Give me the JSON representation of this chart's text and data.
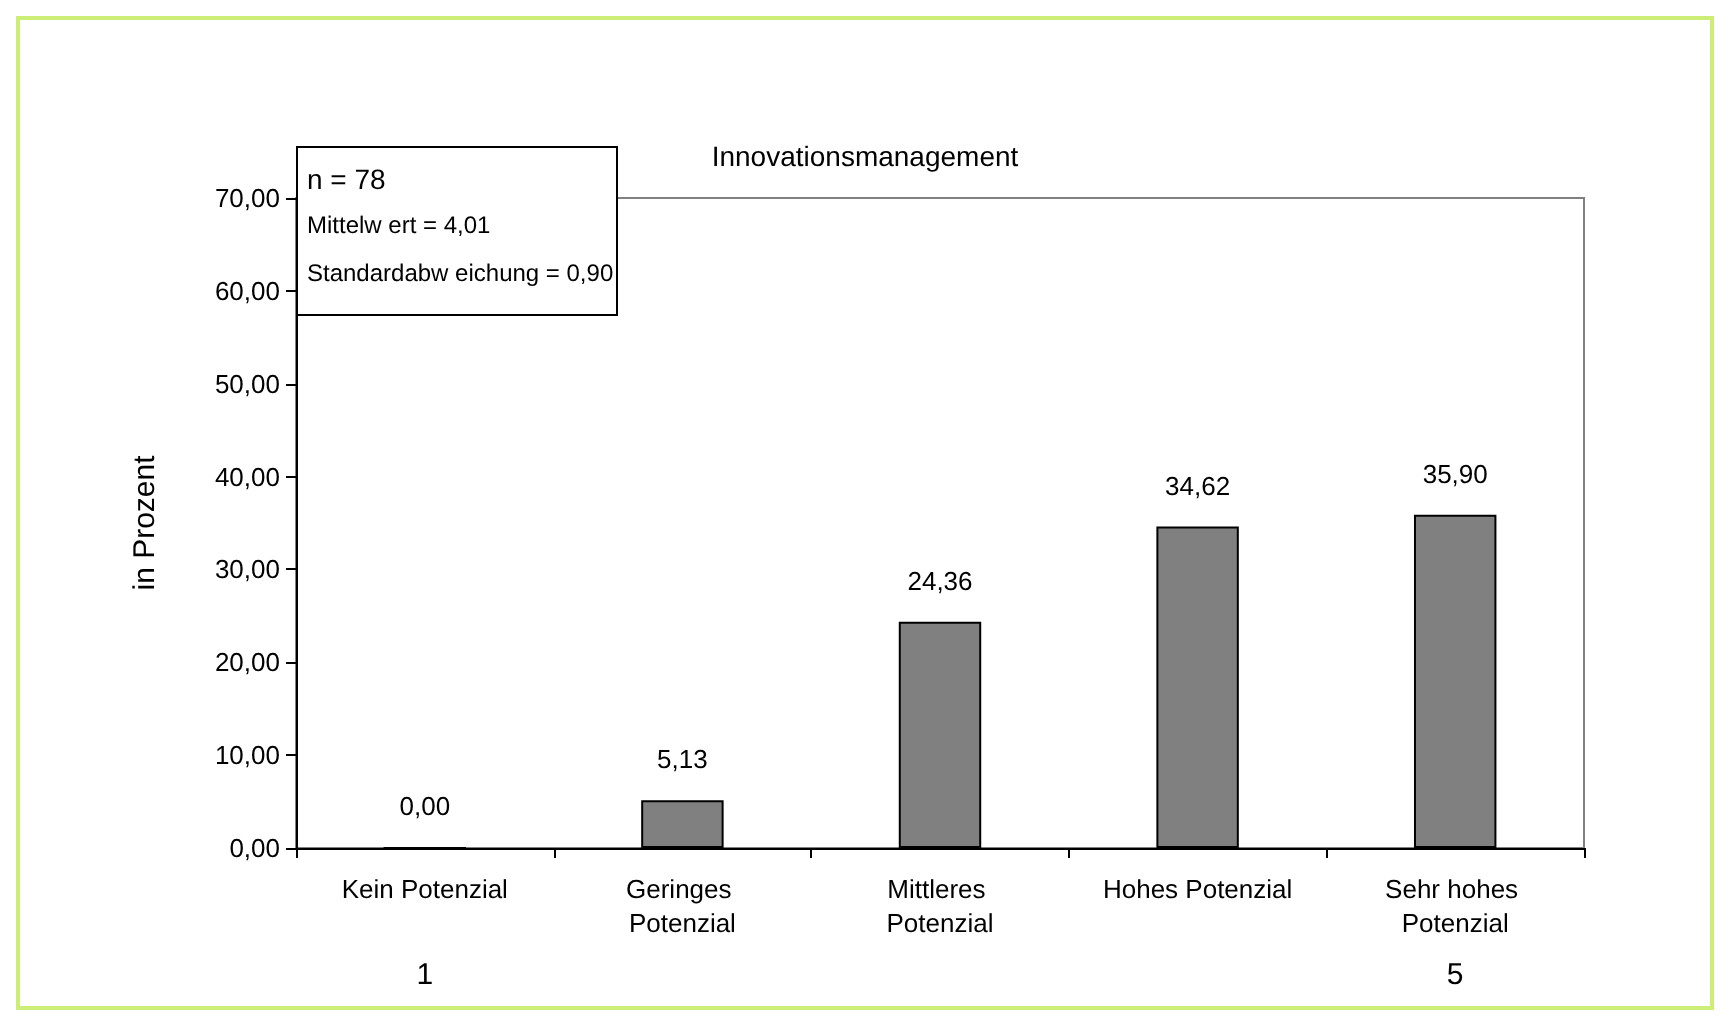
{
  "chart_data": {
    "type": "bar",
    "title": "Innovationsmanagement",
    "ylabel": "in Prozent",
    "categories": [
      "Kein Potenzial",
      "Geringes Potenzial",
      "Mittleres Potenzial",
      "Hohes Potenzial",
      "Sehr hohes Potenzial"
    ],
    "values": [
      0,
      5.13,
      24.36,
      34.62,
      35.9
    ],
    "value_labels": [
      "0,00",
      "5,13",
      "24,36",
      "34,62",
      "35,90"
    ],
    "color": "#808080",
    "ylim": [
      0,
      70
    ],
    "yticks": [
      {
        "value": 0,
        "label": "0,00"
      },
      {
        "value": 10,
        "label": "10,00"
      },
      {
        "value": 20,
        "label": "20,00"
      },
      {
        "value": 30,
        "label": "30,00"
      },
      {
        "value": 40,
        "label": "40,00"
      },
      {
        "value": 50,
        "label": "50,00"
      },
      {
        "value": 60,
        "label": "60,00"
      },
      {
        "value": 70,
        "label": "70,00"
      }
    ],
    "annotations": [
      "n = 78",
      "Mittelw ert = 4,01",
      "Standardabw eichung = 0,90",
      "1",
      "5"
    ],
    "grid": false
  }
}
